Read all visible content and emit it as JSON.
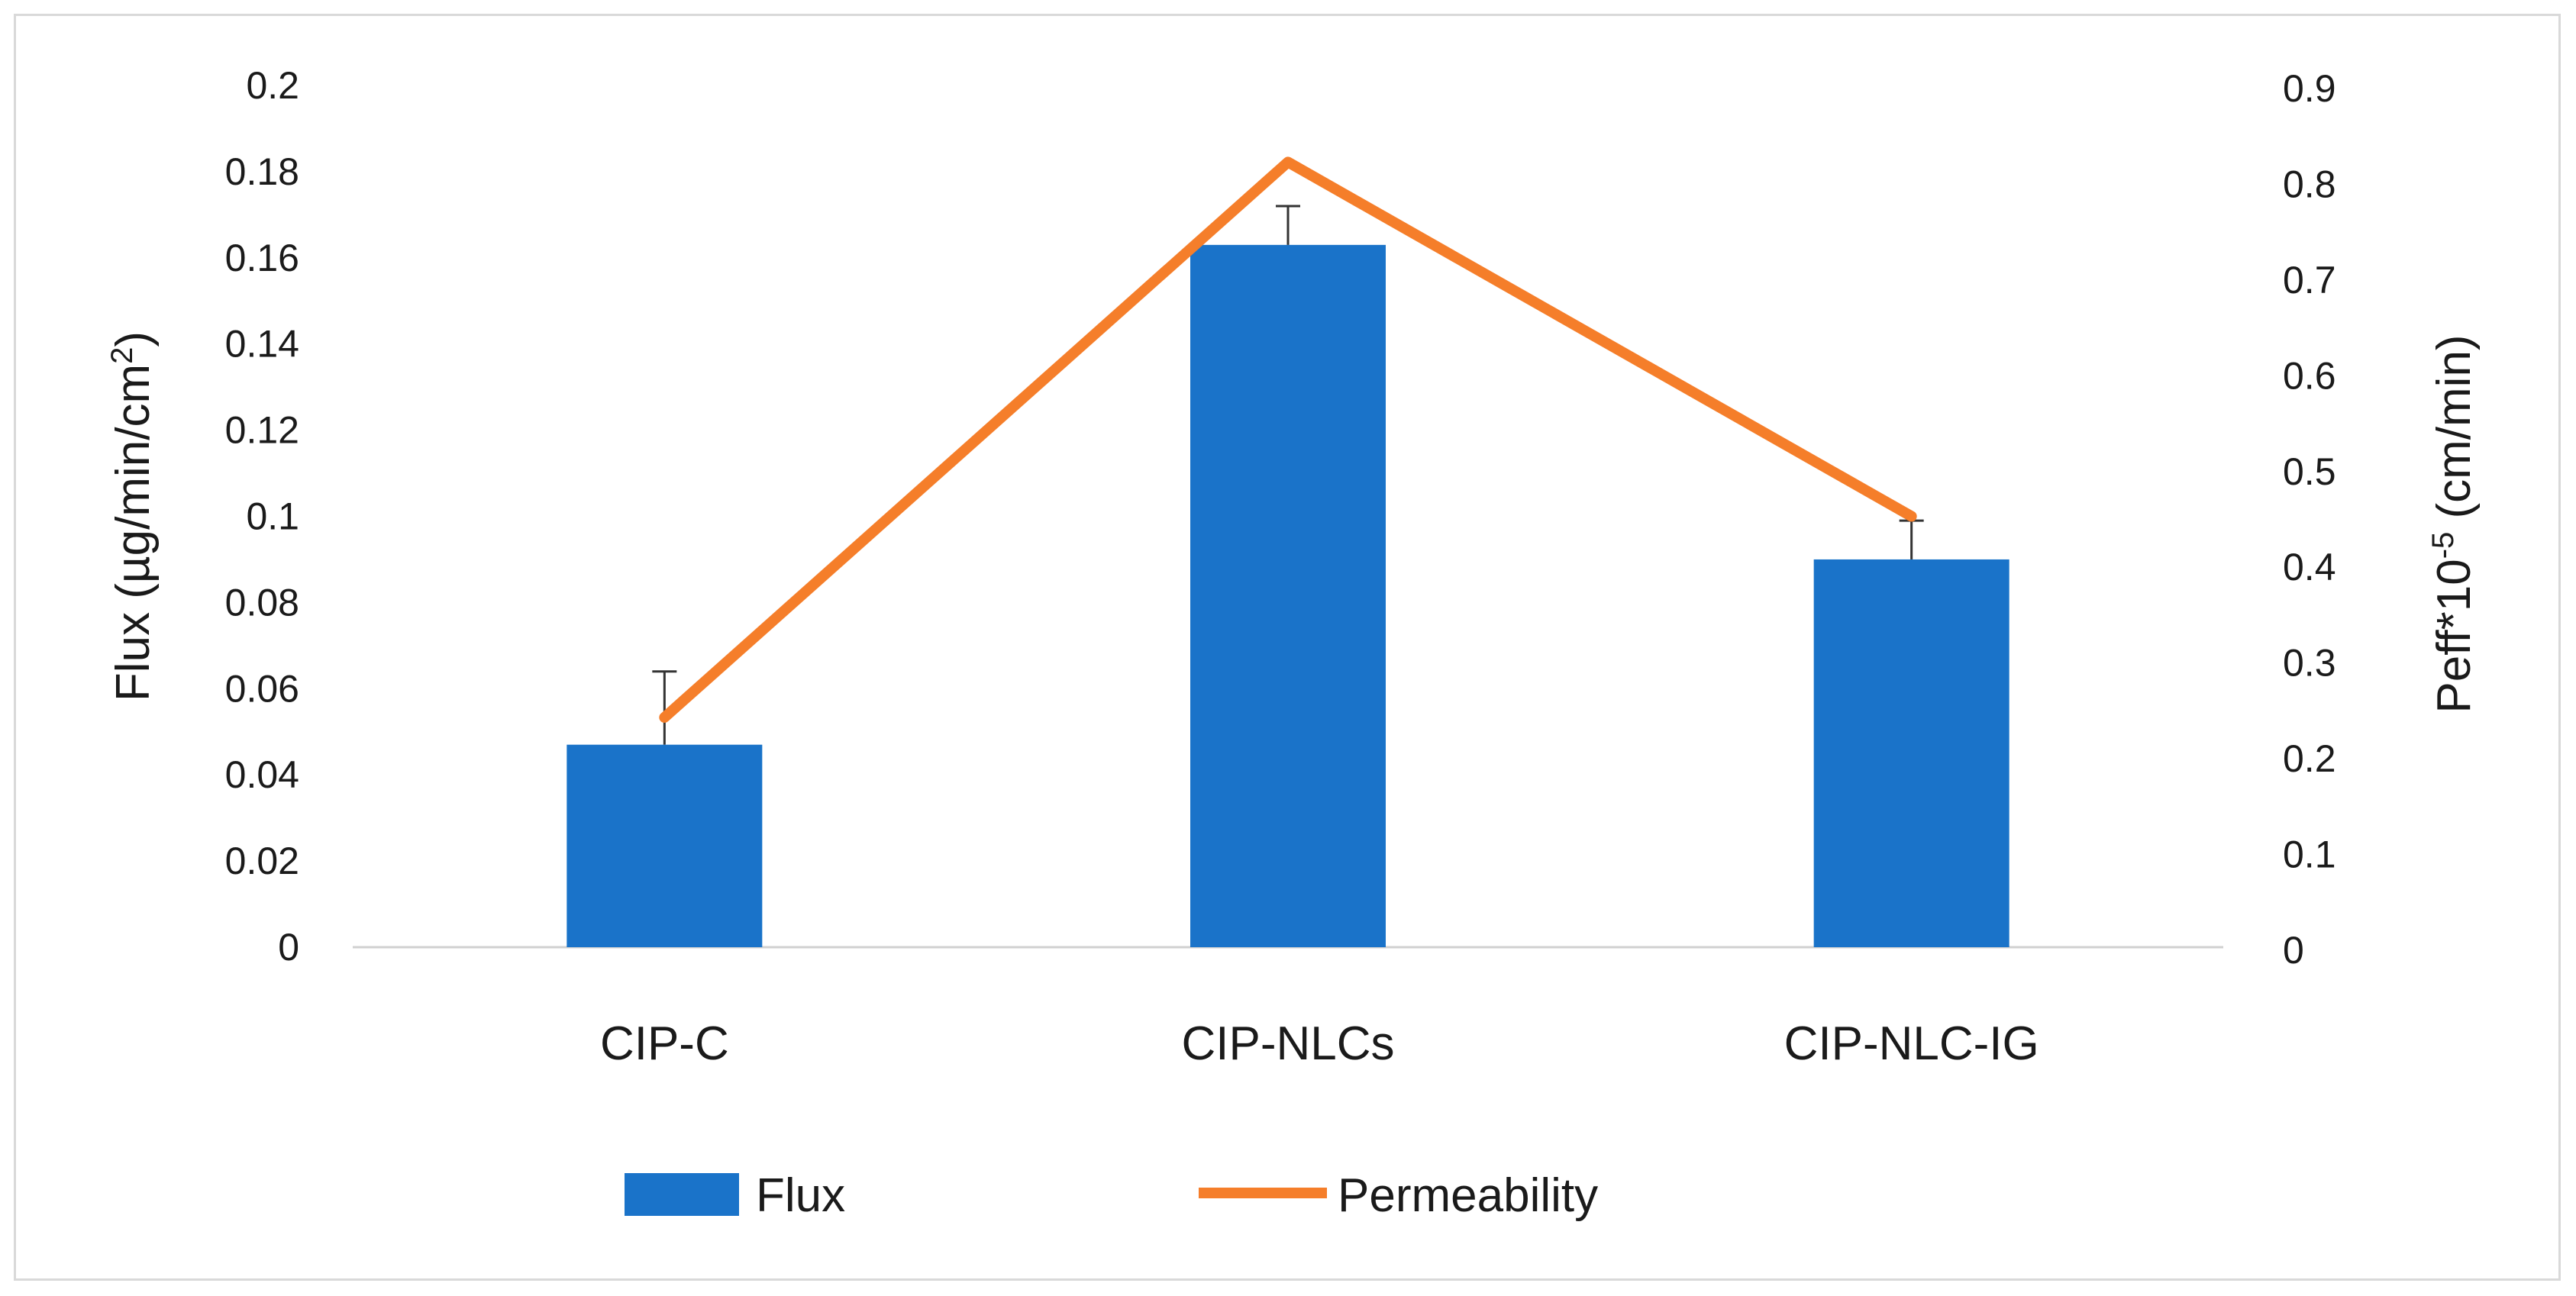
{
  "chart_data": {
    "type": "bar",
    "categories": [
      "CIP-C",
      "CIP-NLCs",
      "CIP-NLC-IG"
    ],
    "series": [
      {
        "name": "Flux",
        "type": "bar",
        "axis": "left",
        "values": [
          0.047,
          0.163,
          0.09
        ],
        "error_plus": [
          0.017,
          0.009,
          0.009
        ],
        "color": "#1a73c9"
      },
      {
        "name": "Permeability",
        "type": "line",
        "axis": "right",
        "values": [
          0.24,
          0.82,
          0.45
        ],
        "color": "#f57e2a"
      }
    ],
    "y_left": {
      "label_main": "Flux (µg/min/cm",
      "label_sup": "2",
      "label_end": ")",
      "ylim": [
        0,
        0.2
      ],
      "ticks": [
        "0",
        "0.02",
        "0.04",
        "0.06",
        "0.08",
        "0.1",
        "0.12",
        "0.14",
        "0.16",
        "0.18",
        "0.2"
      ]
    },
    "y_right": {
      "label_main": "Peff*10",
      "label_sup": "-5",
      "label_end": " (cm/min)",
      "ylim": [
        0,
        0.9
      ],
      "ticks": [
        "0",
        "0.1",
        "0.2",
        "0.3",
        "0.4",
        "0.5",
        "0.6",
        "0.7",
        "0.8",
        "0.9"
      ]
    },
    "legend": {
      "position": "bottom",
      "items": [
        "Flux",
        "Permeability"
      ]
    },
    "grid": false
  }
}
